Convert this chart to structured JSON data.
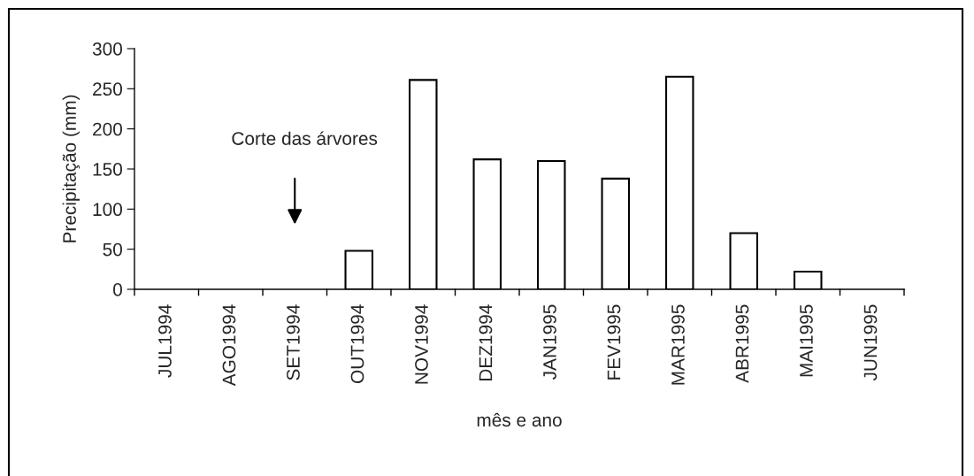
{
  "chart_data": {
    "type": "bar",
    "xlabel": "mês e ano",
    "ylabel": "Precipitação (mm)",
    "categories": [
      "JUL1994",
      "AGO1994",
      "SET1994",
      "OUT1994",
      "NOV1994",
      "DEZ1994",
      "JAN1995",
      "FEV1995",
      "MAR1995",
      "ABR1995",
      "MAI1995",
      "JUN1995"
    ],
    "values": [
      0,
      0,
      0,
      48,
      261,
      162,
      160,
      138,
      265,
      70,
      22,
      0
    ],
    "color": "#ffffff",
    "ylim": [
      0,
      300
    ],
    "yticks": [
      0,
      50,
      100,
      150,
      200,
      250,
      300
    ],
    "grid": false,
    "legend": false,
    "annotations": [
      "Corte das árvores"
    ]
  }
}
